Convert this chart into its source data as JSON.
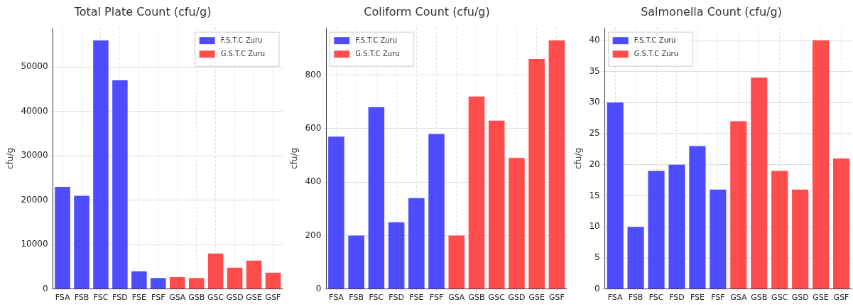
{
  "chart_data": [
    {
      "type": "bar",
      "title": "Total Plate Count (cfu/g)",
      "ylabel": "cfu/g",
      "categories": [
        "FSA",
        "FSB",
        "FSC",
        "FSD",
        "FSE",
        "FSF",
        "GSA",
        "GSB",
        "GSC",
        "GSD",
        "GSE",
        "GSF"
      ],
      "series": [
        {
          "name": "F.S.T.C Zuru",
          "color": "#4d4dff",
          "values": [
            23000,
            21000,
            56000,
            47000,
            4000,
            2500,
            null,
            null,
            null,
            null,
            null,
            null
          ]
        },
        {
          "name": "G.S.T.C Zuru",
          "color": "#ff4d4d",
          "values": [
            null,
            null,
            null,
            null,
            null,
            null,
            2700,
            2500,
            8000,
            4800,
            6400,
            3700
          ]
        }
      ],
      "ylim": [
        0,
        58800
      ],
      "yticks": [
        0,
        10000,
        20000,
        30000,
        40000,
        50000
      ],
      "grid": true,
      "legend": "top right"
    },
    {
      "type": "bar",
      "title": "Coliform Count (cfu/g)",
      "ylabel": "cfu/g",
      "categories": [
        "FSA",
        "FSB",
        "FSC",
        "FSD",
        "FSE",
        "FSF",
        "GSA",
        "GSB",
        "GSC",
        "GSD",
        "GSE",
        "GSF"
      ],
      "series": [
        {
          "name": "F.S.T.C Zuru",
          "color": "#4d4dff",
          "values": [
            570,
            200,
            680,
            250,
            340,
            580,
            null,
            null,
            null,
            null,
            null,
            null
          ]
        },
        {
          "name": "G.S.T.C Zuru",
          "color": "#ff4d4d",
          "values": [
            null,
            null,
            null,
            null,
            null,
            null,
            200,
            720,
            630,
            490,
            860,
            930
          ]
        }
      ],
      "ylim": [
        0,
        976.5
      ],
      "yticks": [
        0,
        200,
        400,
        600,
        800
      ],
      "grid": true,
      "legend": "top left"
    },
    {
      "type": "bar",
      "title": "Salmonella Count (cfu/g)",
      "ylabel": "cfu/g",
      "categories": [
        "FSA",
        "FSB",
        "FSC",
        "FSD",
        "FSE",
        "FSF",
        "GSA",
        "GSB",
        "GSC",
        "GSD",
        "GSE",
        "GSF"
      ],
      "series": [
        {
          "name": "F.S.T.C Zuru",
          "color": "#4d4dff",
          "values": [
            30,
            10,
            19,
            20,
            23,
            16,
            null,
            null,
            null,
            null,
            null,
            null
          ]
        },
        {
          "name": "G.S.T.C Zuru",
          "color": "#ff4d4d",
          "values": [
            null,
            null,
            null,
            null,
            null,
            null,
            27,
            34,
            19,
            16,
            40,
            21
          ]
        }
      ],
      "ylim": [
        0,
        42
      ],
      "yticks": [
        0,
        5,
        10,
        15,
        20,
        25,
        30,
        35,
        40
      ],
      "grid": true,
      "legend": "top left"
    }
  ]
}
